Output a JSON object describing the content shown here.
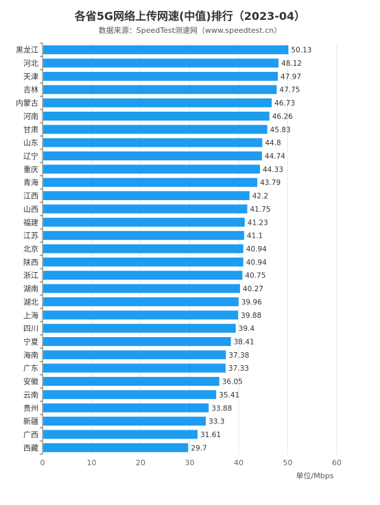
{
  "chart_data": {
    "type": "bar",
    "orientation": "horizontal",
    "title": "各省5G网络上传网速(中值)排行（2023-04）",
    "subtitle": "数据来源：SpeedTest测速网（www.speedtest.cn）",
    "unit_label": "单位/Mbps",
    "categories": [
      "黑龙江",
      "河北",
      "天津",
      "吉林",
      "内蒙古",
      "河南",
      "甘肃",
      "山东",
      "辽宁",
      "重庆",
      "青海",
      "江西",
      "山西",
      "福建",
      "江苏",
      "北京",
      "陕西",
      "浙江",
      "湖南",
      "湖北",
      "上海",
      "四川",
      "宁夏",
      "海南",
      "广东",
      "安徽",
      "云南",
      "贵州",
      "新疆",
      "广西",
      "西藏"
    ],
    "values": [
      50.13,
      48.12,
      47.97,
      47.75,
      46.73,
      46.26,
      45.83,
      44.8,
      44.74,
      44.33,
      43.79,
      42.2,
      41.75,
      41.23,
      41.1,
      40.94,
      40.94,
      40.75,
      40.27,
      39.96,
      39.88,
      39.4,
      38.41,
      37.38,
      37.33,
      36.05,
      35.41,
      33.88,
      33.3,
      31.61,
      29.7
    ],
    "value_labels": [
      "50.13",
      "48.12",
      "47.97",
      "47.75",
      "46.73",
      "46.26",
      "45.83",
      "44.8",
      "44.74",
      "44.33",
      "43.79",
      "42.2",
      "41.75",
      "41.23",
      "41.1",
      "40.94",
      "40.94",
      "40.75",
      "40.27",
      "39.96",
      "39.88",
      "39.4",
      "38.41",
      "37.38",
      "37.33",
      "36.05",
      "35.41",
      "33.88",
      "33.3",
      "31.61",
      "29.7"
    ],
    "x_ticks": [
      "0",
      "10",
      "20",
      "30",
      "40",
      "50",
      "60"
    ],
    "xlim": [
      0,
      60
    ],
    "grid": true,
    "bar_color": "#1e9cf0"
  }
}
